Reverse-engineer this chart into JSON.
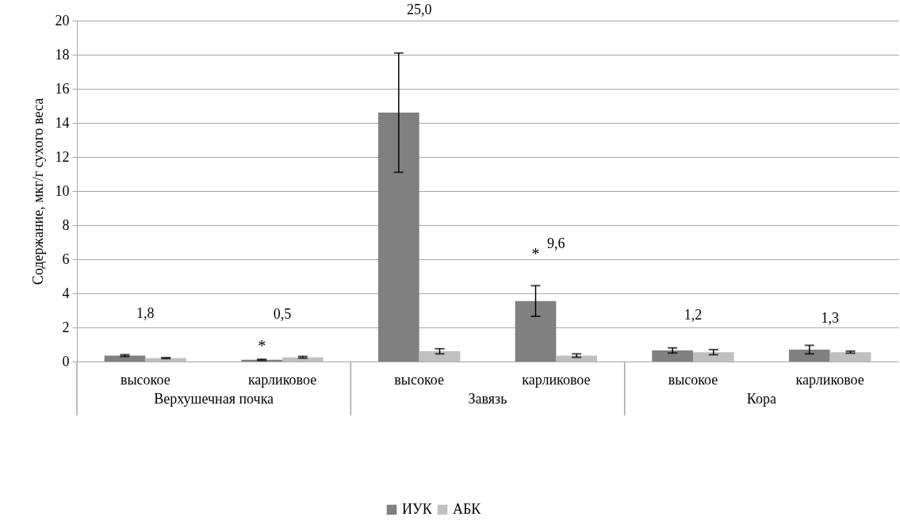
{
  "chart_data": {
    "type": "bar",
    "ylabel": "Содержание, мкг/г сухого веса",
    "categories": [
      "высокое",
      "карликовое",
      "высокое",
      "карликовое",
      "высокое",
      "карликовое"
    ],
    "series": [
      {
        "name": "ИУК",
        "color": "#808080",
        "values": [
          0.35,
          0.1,
          14.6,
          3.55,
          0.65,
          0.7
        ],
        "errors": [
          0.05,
          0.03,
          3.5,
          0.9,
          0.15,
          0.25
        ]
      },
      {
        "name": "АБК",
        "color": "#c0c0c0",
        "values": [
          0.2,
          0.25,
          0.6,
          0.35,
          0.55,
          0.55
        ],
        "errors": [
          0.03,
          0.05,
          0.15,
          0.1,
          0.15,
          0.06
        ]
      }
    ],
    "annotations": [
      "Верхушечная почка",
      "Завязь",
      "Кора",
      "1,8",
      "0,5",
      "25,0",
      "9,6",
      "1,2",
      "1,3",
      "*",
      "*"
    ],
    "ylim": [
      0,
      20
    ],
    "yticks": [
      0,
      2,
      4,
      6,
      8,
      10,
      12,
      14,
      16,
      18,
      20
    ],
    "grid": "y",
    "legend": "bottom"
  }
}
